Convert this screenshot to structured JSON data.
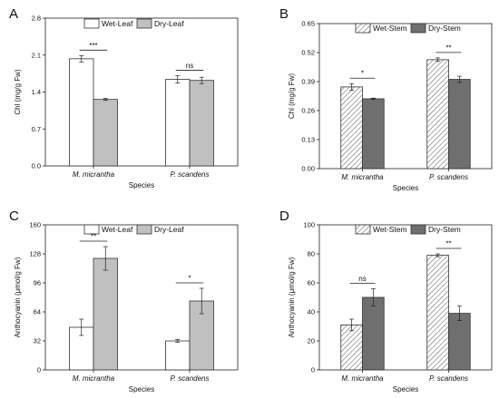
{
  "patterns": {
    "hatch": "hatch-pattern"
  },
  "chart_data": [
    {
      "panel": "A",
      "type": "bar",
      "categories": [
        "M. micrantha",
        "P. scandens"
      ],
      "series": [
        {
          "name": "Wet-Leaf",
          "values": [
            2.03,
            1.64
          ],
          "errors": [
            0.06,
            0.07
          ],
          "fill": "#ffffff",
          "pattern": "none"
        },
        {
          "name": "Dry-Leaf",
          "values": [
            1.26,
            1.62
          ],
          "errors": [
            0.02,
            0.06
          ],
          "fill": "#c0c0c0",
          "pattern": "none"
        }
      ],
      "significance": [
        "***",
        "ns"
      ],
      "xlabel": "Species",
      "ylabel": "Chl (mg/g Fw)",
      "ylim": [
        0,
        2.8
      ],
      "yticks": [
        "0.0",
        "0.7",
        "1.4",
        "2.1",
        "2.8"
      ],
      "legend_position": "top-center"
    },
    {
      "panel": "B",
      "type": "bar",
      "categories": [
        "M. micrantha",
        "P. scandens"
      ],
      "series": [
        {
          "name": "Wet-Stem",
          "values": [
            0.366,
            0.488
          ],
          "errors": [
            0.015,
            0.008
          ],
          "fill": "#ffffff",
          "pattern": "hatch"
        },
        {
          "name": "Dry-Stem",
          "values": [
            0.313,
            0.4
          ],
          "errors": [
            0.003,
            0.014
          ],
          "fill": "#6f6f6f",
          "pattern": "none"
        }
      ],
      "significance": [
        "*",
        "**"
      ],
      "xlabel": "Species",
      "ylabel": "Chl (mg/g Fw)",
      "ylim": [
        0,
        0.65
      ],
      "yticks": [
        "0.00",
        "0.13",
        "0.26",
        "0.39",
        "0.52",
        "0.65"
      ],
      "legend_position": "top-right"
    },
    {
      "panel": "C",
      "type": "bar",
      "categories": [
        "M. micrantha",
        "P. scandens"
      ],
      "series": [
        {
          "name": "Wet-Leaf",
          "values": [
            47,
            32
          ],
          "errors": [
            9,
            1.5
          ],
          "fill": "#ffffff",
          "pattern": "none"
        },
        {
          "name": "Dry-Leaf",
          "values": [
            123,
            76
          ],
          "errors": [
            13,
            14
          ],
          "fill": "#c0c0c0",
          "pattern": "none"
        }
      ],
      "significance": [
        "**",
        "*"
      ],
      "xlabel": "Species",
      "ylabel": "Anthocyanin (μmol/g Fw)",
      "ylim": [
        0,
        160
      ],
      "yticks": [
        "0",
        "32",
        "64",
        "96",
        "128",
        "160"
      ],
      "legend_position": "top-center"
    },
    {
      "panel": "D",
      "type": "bar",
      "categories": [
        "M. micrantha",
        "P. scandens"
      ],
      "series": [
        {
          "name": "Wet-Stem",
          "values": [
            31,
            79
          ],
          "errors": [
            4,
            1
          ],
          "fill": "#ffffff",
          "pattern": "hatch"
        },
        {
          "name": "Dry-Stem",
          "values": [
            50,
            39
          ],
          "errors": [
            6,
            5
          ],
          "fill": "#6f6f6f",
          "pattern": "none"
        }
      ],
      "significance": [
        "ns",
        "**"
      ],
      "xlabel": "Species",
      "ylabel": "Anthocyanin (μmol/g Fw)",
      "ylim": [
        0,
        100
      ],
      "yticks": [
        "0",
        "20",
        "40",
        "60",
        "80",
        "100"
      ],
      "legend_position": "top-center"
    }
  ]
}
